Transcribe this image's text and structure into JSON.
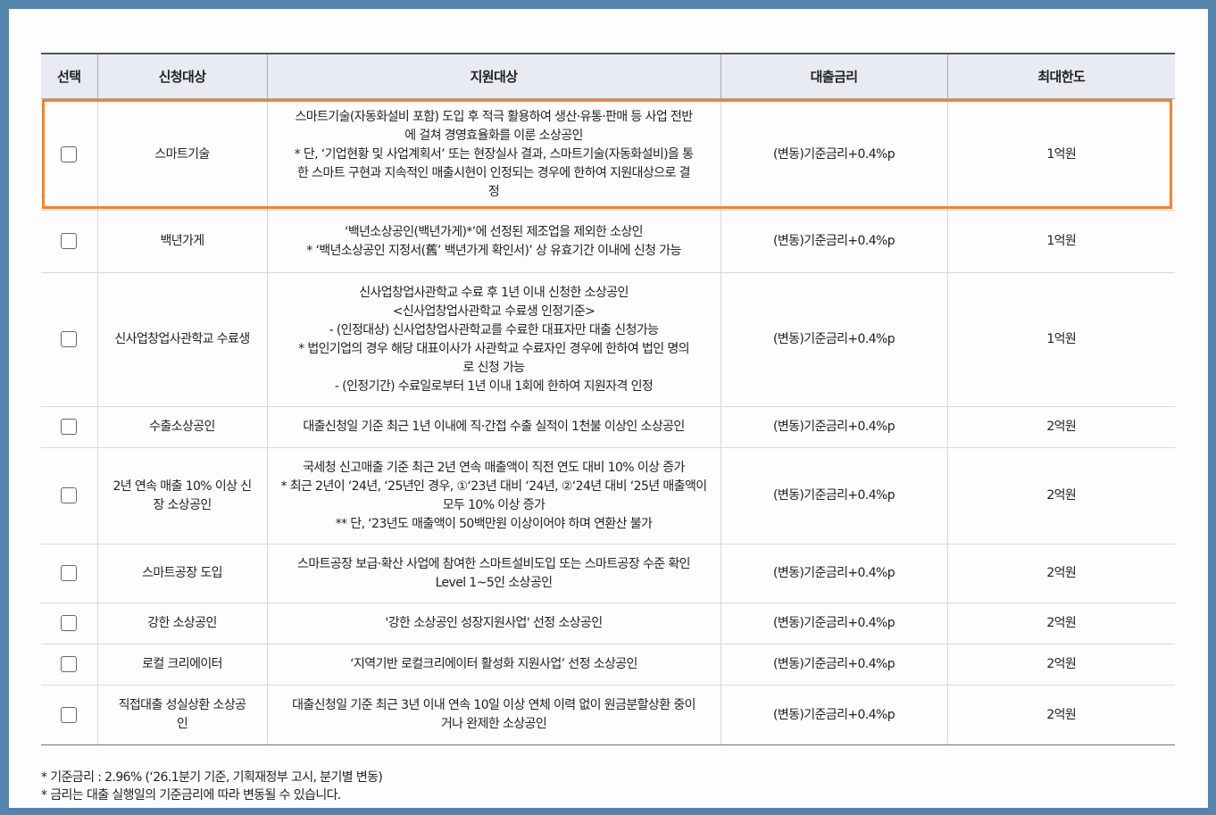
{
  "headers": [
    "선택",
    "신청대상",
    "지원대상",
    "대출금리",
    "최대한도"
  ],
  "rows": [
    {
      "target": [
        "스마트기술"
      ],
      "desc": [
        "스마트기술(자동화설비 포함) 도입 후 적극 활용하여 생산·유통·판매 등 사업 전반",
        "에 걸쳐 경영효율화를 이룬 소상공인",
        "* 단, ‘기업현황 및 사업계획서’ 또는 현장실사 결과, 스마트기술(자동화설비)을 통",
        "한 스마트 구현과 지속적인 매출시현이 인정되는 경우에 한하여 지원대상으로 결",
        "정"
      ],
      "rate": "(변동)기준금리+0.4%p",
      "limit": "1억원",
      "highlighted": true,
      "checked": false
    },
    {
      "target": [
        "백년가게"
      ],
      "desc": [
        "‘백년소상공인(백년가게)*’에 선정된 제조업을 제외한 소상인",
        "* ‘백년소상공인 지정서(舊’ 백년가게 확인서)’ 상 유효기간 이내에 신청 가능"
      ],
      "rate": "(변동)기준금리+0.4%p",
      "limit": "1억원",
      "checked": false
    },
    {
      "target": [
        "신사업창업사관학교 수료생"
      ],
      "desc": [
        "신사업창업사관학교 수료 후 1년 이내 신청한 소상공인",
        "<신사업창업사관학교 수료생 인정기준>",
        "- (인정대상) 신사업창업사관학교를 수료한 대표자만 대출 신청가능",
        "* 법인기업의 경우 해당 대표이사가 사관학교 수료자인 경우에 한하여 법인 명의",
        "로 신청 가능",
        "- (인정기간) 수료일로부터 1년 이내 1회에 한하여 지원자격 인정"
      ],
      "rate": "(변동)기준금리+0.4%p",
      "limit": "1억원",
      "checked": false
    },
    {
      "target": [
        "수출소상공인"
      ],
      "desc": [
        "대출신청일 기준 최근 1년 이내에 직·간접 수출 실적이 1천불 이상인 소상공인"
      ],
      "rate": "(변동)기준금리+0.4%p",
      "limit": "2억원",
      "checked": false
    },
    {
      "target": [
        "2년 연속 매출 10% 이상 신",
        "장 소상공인"
      ],
      "desc": [
        "국세청 신고매출 기준 최근 2년 연속 매출액이 직전 연도 대비 10% 이상 증가",
        "* 최근 2년이 ‘24년, ‘25년인 경우, ①‘23년 대비 ‘24년, ②‘24년 대비 ‘25년 매출액이",
        "모두 10% 이상 증가",
        "** 단, ‘23년도 매출액이 50백만원 이상이어야 하며 연환산 불가"
      ],
      "rate": "(변동)기준금리+0.4%p",
      "limit": "2억원",
      "checked": false
    },
    {
      "target": [
        "스마트공장 도입"
      ],
      "desc": [
        "스마트공장 보급·확산 사업에 참여한 스마트설비도입 또는 스마트공장 수준 확인",
        "Level 1~5인 소상공인"
      ],
      "rate": "(변동)기준금리+0.4%p",
      "limit": "2억원",
      "checked": false
    },
    {
      "target": [
        "강한 소상공인"
      ],
      "desc": [
        "'강한 소상공인 성장지원사업' 선정 소상공인"
      ],
      "rate": "(변동)기준금리+0.4%p",
      "limit": "2억원",
      "checked": false
    },
    {
      "target": [
        "로컬 크리에이터"
      ],
      "desc": [
        "‘지역기반 로컬크리에이터 활성화 지원사업’ 선정 소상공인"
      ],
      "rate": "(변동)기준금리+0.4%p",
      "limit": "2억원",
      "checked": false
    },
    {
      "target": [
        "직접대출 성실상환 소상공",
        "인"
      ],
      "desc": [
        "대출신청일 기준 최근 3년 이내 연속 10일 이상 연체 이력 없이 원금분할상환 중이",
        "거나 완제한 소상공인"
      ],
      "rate": "(변동)기준금리+0.4%p",
      "limit": "2억원",
      "checked": false
    }
  ],
  "notes": [
    "* 기준금리 : 2.96% (‘26.1분기 기준, 기획재정부 고시, 분기별 변동)",
    "* 금리는 대출 실행일의 기준금리에 따라 변동될 수 있습니다."
  ],
  "colors": {
    "frame": "#5584ad",
    "header_bg": "#e9ebf3",
    "highlight": "#f5822a"
  }
}
